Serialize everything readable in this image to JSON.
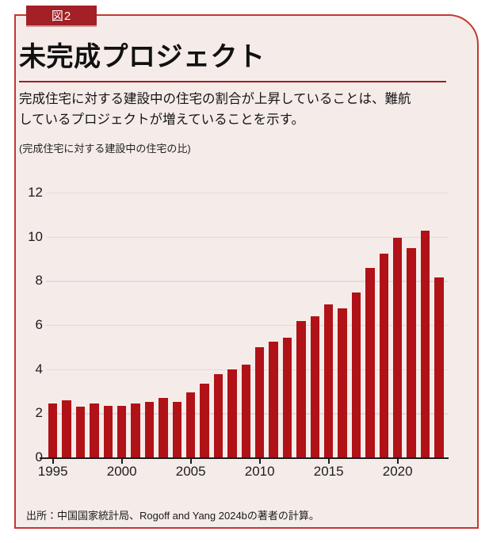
{
  "header": {
    "figure_label": "図2",
    "title": "未完成プロジェクト",
    "subtitle_lines": [
      "完成住宅に対する建設中の住宅の割合が上昇していることは、難航",
      "しているプロジェクトが増えていることを示す。"
    ],
    "unit_label": "(完成住宅に対する建設中の住宅の比)"
  },
  "footer": {
    "source": "出所：中国国家統計局、Rogoff and Yang 2024bの著者の計算。"
  },
  "colors": {
    "bar": "#b01217",
    "card_background": "#f5ece9",
    "card_border": "#c03a2e",
    "badge_background": "#a32026",
    "title_rule": "#a11c25",
    "gridline": "#dcdcde",
    "axis_text": "#1c1c1c"
  },
  "chart_data": {
    "type": "bar",
    "title": "未完成プロジェクト",
    "ylabel": "完成住宅に対する建設中の住宅の比",
    "xlabel": "",
    "grid": true,
    "legend": null,
    "ylim": [
      0,
      12
    ],
    "yticks": [
      0,
      2,
      4,
      6,
      8,
      10,
      12
    ],
    "xticks": [
      1995,
      2000,
      2005,
      2010,
      2015,
      2020
    ],
    "x": [
      1995,
      1996,
      1997,
      1998,
      1999,
      2000,
      2001,
      2002,
      2003,
      2004,
      2005,
      2006,
      2007,
      2008,
      2009,
      2010,
      2011,
      2012,
      2013,
      2014,
      2015,
      2016,
      2017,
      2018,
      2019,
      2020,
      2021,
      2022,
      2023
    ],
    "values": [
      2.45,
      2.58,
      2.3,
      2.45,
      2.34,
      2.35,
      2.43,
      2.53,
      2.7,
      2.53,
      2.95,
      3.35,
      3.78,
      3.98,
      4.2,
      4.98,
      5.23,
      5.44,
      6.18,
      6.39,
      6.95,
      6.76,
      7.49,
      8.57,
      9.23,
      9.95,
      9.48,
      10.27,
      8.14
    ]
  }
}
